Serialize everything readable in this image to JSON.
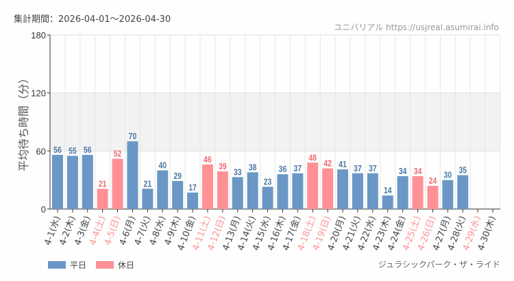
{
  "header": {
    "period": "集計期間：2026-04-01～2026-04-30",
    "credit": "ユニバリアル https://usjreal.asumirai.info"
  },
  "footer": {
    "attraction": "ジュラシックパーク・ザ・ライド"
  },
  "colors": {
    "weekday": "#6a97c5",
    "holiday": "#ff9196",
    "weekday_text": "#4a78a8",
    "holiday_text": "#f06a72",
    "band": "#f2f2f2"
  },
  "chart_data": {
    "type": "bar",
    "title": "",
    "xlabel": "",
    "ylabel": "平均待ち時間（分）",
    "ylim": [
      0,
      180
    ],
    "yticks": [
      0,
      60,
      120,
      180
    ],
    "grid": true,
    "shaded_band": [
      60,
      120
    ],
    "legend_position": "bottom-left",
    "legend": [
      {
        "name": "平日",
        "color": "#6a97c5"
      },
      {
        "name": "休日",
        "color": "#ff9196"
      }
    ],
    "categories": [
      "4-1(水)",
      "4-2(木)",
      "4-3(金)",
      "4-4(土)",
      "4-5(日)",
      "4-6(月)",
      "4-7(火)",
      "4-8(水)",
      "4-9(木)",
      "4-10(金)",
      "4-11(土)",
      "4-12(日)",
      "4-13(月)",
      "4-14(火)",
      "4-15(水)",
      "4-16(木)",
      "4-17(金)",
      "4-18(土)",
      "4-19(日)",
      "4-20(月)",
      "4-21(火)",
      "4-22(水)",
      "4-23(木)",
      "4-24(金)",
      "4-25(土)",
      "4-26(日)",
      "4-27(月)",
      "4-28(火)",
      "4-29(水)",
      "4-30(木)"
    ],
    "holiday": [
      false,
      false,
      false,
      true,
      true,
      false,
      false,
      false,
      false,
      false,
      true,
      true,
      false,
      false,
      false,
      false,
      false,
      true,
      true,
      false,
      false,
      false,
      false,
      false,
      true,
      true,
      false,
      false,
      true,
      false
    ],
    "values": [
      56,
      55,
      56,
      21,
      52,
      70,
      21,
      40,
      29,
      17,
      46,
      39,
      33,
      38,
      23,
      36,
      37,
      48,
      42,
      41,
      37,
      37,
      14,
      34,
      34,
      24,
      30,
      35,
      null,
      null
    ]
  }
}
